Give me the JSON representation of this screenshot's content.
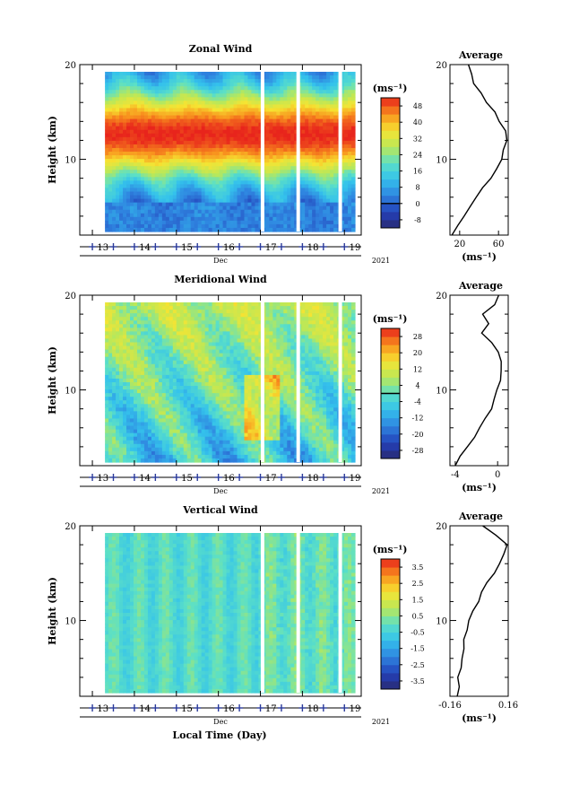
{
  "figure": {
    "xlabel": "Local Time (Day)",
    "month_label": "Dec",
    "year_label": "2021",
    "ylabel": "Height (km)",
    "avg_title": "Average",
    "unit_label": "(ms⁻¹)"
  },
  "chart_data": [
    {
      "type": "heatmap",
      "title": "Zonal Wind",
      "xlabel": "Local Time (Day)",
      "ylabel": "Height (km)",
      "x_ticks": [
        "13",
        "14",
        "15",
        "16",
        "17",
        "18",
        "19"
      ],
      "xlim": [
        12.7,
        19.4
      ],
      "data_xlim": [
        13.3,
        19.25
      ],
      "ylim": [
        2,
        20
      ],
      "y_ticks": [
        "20",
        "10"
      ],
      "colorbar_unit": "(ms⁻¹)",
      "colorbar_ticks": [
        "48",
        "40",
        "32",
        "24",
        "16",
        "8",
        "0",
        "-8"
      ],
      "colorbar_range": [
        -12,
        52
      ],
      "colorbar_contour_line": 0,
      "field_description_values": {
        "low_level_wind": 4,
        "jet_core_wind": 50,
        "jet_core_height_km": 12.5
      },
      "data_gaps_day": [
        17.05,
        17.9,
        18.9
      ],
      "average_profile": {
        "title": "Average",
        "xlabel": "(ms⁻¹)",
        "x_ticks": [
          "20",
          "60"
        ],
        "xlim": [
          10,
          70
        ],
        "heights": [
          2,
          3,
          4,
          5,
          6,
          7,
          8,
          9,
          10,
          11,
          12,
          13,
          14,
          15,
          16,
          17,
          18,
          19,
          20
        ],
        "values": [
          12,
          18,
          24,
          30,
          37,
          44,
          51,
          57,
          62,
          66,
          68,
          66,
          62,
          56,
          48,
          41,
          35,
          31,
          29
        ]
      }
    },
    {
      "type": "heatmap",
      "title": "Meridional Wind",
      "xlabel": "Local Time (Day)",
      "ylabel": "Height (km)",
      "x_ticks": [
        "13",
        "14",
        "15",
        "16",
        "17",
        "18",
        "19"
      ],
      "xlim": [
        12.7,
        19.4
      ],
      "data_xlim": [
        13.3,
        19.25
      ],
      "ylim": [
        2,
        20
      ],
      "y_ticks": [
        "20",
        "10"
      ],
      "colorbar_unit": "(ms⁻¹)",
      "colorbar_ticks": [
        "28",
        "20",
        "12",
        "4",
        "-4",
        "-12",
        "-20",
        "-28"
      ],
      "colorbar_range": [
        -32,
        32
      ],
      "colorbar_contour_line": 0,
      "data_gaps_day": [
        17.05,
        17.9,
        18.9
      ],
      "average_profile": {
        "title": "Average",
        "xlabel": "(ms⁻¹)",
        "x_ticks": [
          "-4",
          "0"
        ],
        "xlim": [
          -4.5,
          1
        ],
        "heights": [
          2,
          3,
          4,
          5,
          6,
          7,
          8,
          9,
          10,
          11,
          12,
          13,
          14,
          15,
          16,
          17,
          18,
          19,
          20
        ],
        "values": [
          -4.0,
          -3.5,
          -2.8,
          -2.2,
          -1.6,
          -1.1,
          -0.6,
          -0.3,
          0.0,
          0.2,
          0.4,
          0.3,
          0.1,
          -0.6,
          -1.4,
          -0.8,
          -1.3,
          -0.4,
          0.1
        ]
      }
    },
    {
      "type": "heatmap",
      "title": "Vertical Wind",
      "xlabel": "Local Time (Day)",
      "ylabel": "Height (km)",
      "x_ticks": [
        "13",
        "14",
        "15",
        "16",
        "17",
        "18",
        "19"
      ],
      "xlim": [
        12.7,
        19.4
      ],
      "data_xlim": [
        13.3,
        19.25
      ],
      "ylim": [
        2,
        20
      ],
      "y_ticks": [
        "20",
        "10"
      ],
      "colorbar_unit": "(ms⁻¹)",
      "colorbar_ticks": [
        "3.5",
        "2.5",
        "1.5",
        "0.5",
        "-0.5",
        "-1.5",
        "-2.5",
        "-3.5"
      ],
      "colorbar_range": [
        -4,
        4
      ],
      "colorbar_contour_line": null,
      "data_gaps_day": [
        17.05,
        17.9,
        18.9
      ],
      "average_profile": {
        "title": "Average",
        "xlabel": "(ms⁻¹)",
        "x_ticks": [
          "-0.16",
          "0.16"
        ],
        "xlim": [
          -0.16,
          0.16
        ],
        "heights": [
          2,
          3,
          4,
          5,
          6,
          7,
          8,
          9,
          10,
          11,
          12,
          13,
          14,
          15,
          16,
          17,
          18,
          19,
          20
        ],
        "values": [
          -0.12,
          -0.11,
          -0.12,
          -0.1,
          -0.09,
          -0.08,
          -0.09,
          -0.07,
          -0.06,
          -0.03,
          0.0,
          0.02,
          0.05,
          0.08,
          0.11,
          0.13,
          0.15,
          0.1,
          0.02
        ]
      }
    }
  ]
}
